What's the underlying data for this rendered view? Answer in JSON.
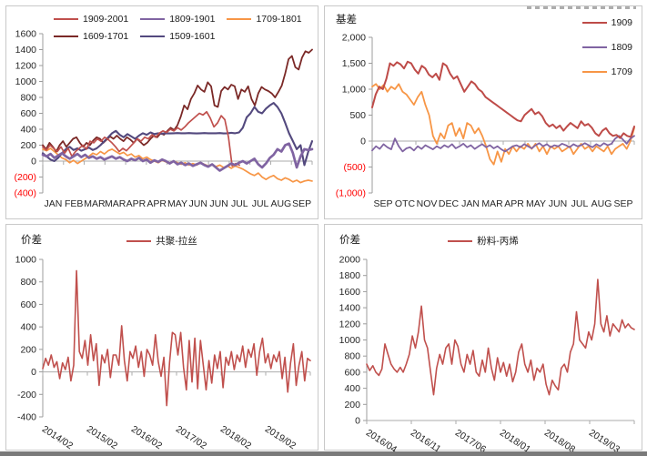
{
  "page": {
    "bottom_bar_color": "#7a7a7a"
  },
  "chart_data": [
    {
      "type": "line",
      "title": "",
      "legend_position": "top",
      "grid": "zero-line-only",
      "neg_red": true,
      "ylim": [
        -400,
        1600
      ],
      "yticks": [
        {
          "v": 1600,
          "t": "1600"
        },
        {
          "v": 1400,
          "t": "1400"
        },
        {
          "v": 1200,
          "t": "1200"
        },
        {
          "v": 1000,
          "t": "1000"
        },
        {
          "v": 800,
          "t": "800"
        },
        {
          "v": 600,
          "t": "600"
        },
        {
          "v": 400,
          "t": "400"
        },
        {
          "v": 200,
          "t": "200"
        },
        {
          "v": 0,
          "t": "0"
        },
        {
          "v": -200,
          "t": "(200)"
        },
        {
          "v": -400,
          "t": "(400)"
        }
      ],
      "xticklabels": [
        "JAN",
        "FEB",
        "MAR",
        "MAR",
        "APR",
        "APR",
        "MAY",
        "JUN",
        "JUN",
        "JUL",
        "JUL",
        "AUG",
        "SEP"
      ],
      "xtick_rotation": 0,
      "series": [
        {
          "name": "1909-2001",
          "color": "#C0504D",
          "width": 1.7,
          "z": 4,
          "x_start": 0,
          "x_end": 73,
          "values": [
            180,
            140,
            200,
            160,
            120,
            180,
            100,
            160,
            60,
            120,
            160,
            200,
            150,
            250,
            230,
            280,
            250,
            300,
            270,
            230,
            180,
            120,
            160,
            130,
            180,
            230,
            280,
            250,
            300,
            280,
            330,
            300,
            350,
            380,
            360,
            400,
            380,
            420,
            390,
            430,
            480,
            520,
            560,
            600,
            580,
            620,
            540,
            430,
            480,
            570,
            520,
            300,
            -60,
            -30,
            -50
          ]
        },
        {
          "name": "1809-1901",
          "color": "#8064A2",
          "width": 2.7,
          "z": 5,
          "values": [
            80,
            60,
            90,
            40,
            70,
            100,
            60,
            30,
            60,
            90,
            50,
            80,
            40,
            60,
            30,
            50,
            20,
            40,
            60,
            30,
            50,
            20,
            0,
            30,
            10,
            40,
            0,
            20,
            -20,
            10,
            -10,
            20,
            0,
            -30,
            0,
            -40,
            -20,
            -50,
            -30,
            -60,
            -40,
            -20,
            -50,
            -70,
            -40,
            -80,
            -120,
            -90,
            -60,
            -30,
            -50,
            -20,
            0,
            -30,
            0,
            30,
            -40,
            -80,
            -30,
            40,
            80,
            150,
            120,
            200,
            220,
            100,
            -80,
            60,
            150,
            140,
            150
          ]
        },
        {
          "name": "1709-1801",
          "color": "#F79646",
          "width": 1.7,
          "z": 1,
          "values": [
            150,
            130,
            160,
            120,
            80,
            40,
            20,
            -20,
            10,
            -30,
            0,
            30,
            60,
            100,
            80,
            120,
            90,
            130,
            150,
            120,
            90,
            110,
            70,
            90,
            50,
            70,
            30,
            50,
            20,
            0,
            -20,
            10,
            -10,
            -30,
            0,
            -20,
            -40,
            -20,
            -50,
            -30,
            -50,
            -20,
            -40,
            -60,
            -40,
            -70,
            -50,
            -80,
            -60,
            -90,
            -60,
            -80,
            -100,
            -130,
            -160,
            -180,
            -150,
            -200,
            -230,
            -200,
            -180,
            -220,
            -240,
            -210,
            -230,
            -260,
            -240,
            -270,
            -250,
            -240,
            -250
          ]
        },
        {
          "name": "1609-1701",
          "color": "#7B2927",
          "width": 1.8,
          "z": 2,
          "values": [
            200,
            150,
            230,
            180,
            120,
            200,
            250,
            180,
            230,
            280,
            300,
            230,
            180,
            230,
            200,
            260,
            300,
            280,
            230,
            270,
            310,
            280,
            320,
            280,
            250,
            300,
            270,
            230,
            280,
            240,
            200,
            230,
            280,
            320,
            300,
            350,
            330,
            380,
            420,
            390,
            450,
            560,
            700,
            650,
            780,
            850,
            950,
            900,
            870,
            990,
            940,
            700,
            680,
            880,
            930,
            900,
            960,
            940,
            780,
            900,
            870,
            940,
            780,
            700,
            850,
            930,
            900,
            880,
            850,
            800,
            870,
            950,
            1100,
            1280,
            1320,
            1180,
            1150,
            1300,
            1380,
            1360,
            1400
          ]
        },
        {
          "name": "1509-1601",
          "color": "#53497E",
          "width": 2.1,
          "z": 3,
          "values": [
            100,
            60,
            20,
            0,
            40,
            100,
            150,
            180,
            140,
            160,
            130,
            150,
            170,
            140,
            160,
            200,
            250,
            300,
            350,
            380,
            330,
            300,
            340,
            310,
            280,
            320,
            350,
            330,
            360,
            340,
            350,
            345,
            350,
            348,
            350,
            352,
            350,
            350,
            352,
            350,
            348,
            350,
            352,
            350,
            350,
            350,
            352,
            348,
            350,
            355,
            350,
            360,
            420,
            550,
            600,
            680,
            620,
            600,
            660,
            700,
            730,
            680,
            600,
            480,
            350,
            250,
            150,
            200,
            -50,
            120,
            250
          ]
        }
      ]
    },
    {
      "type": "line",
      "title": "基差",
      "legend_position": "right",
      "grid": "zero-line-only",
      "neg_red": true,
      "ylim": [
        -1000,
        2000
      ],
      "yticks": [
        {
          "v": 2000,
          "t": "2,000"
        },
        {
          "v": 1500,
          "t": "1,500"
        },
        {
          "v": 1000,
          "t": "1,000"
        },
        {
          "v": 500,
          "t": "500"
        },
        {
          "v": 0,
          "t": "0"
        },
        {
          "v": -500,
          "t": "(500)"
        },
        {
          "v": -1000,
          "t": "(1,000)"
        }
      ],
      "xticklabels": [
        "SEP",
        "OTC",
        "NOV",
        "DEC",
        "JAN",
        "MAR",
        "APR",
        "MAY",
        "JUN",
        "JUL",
        "AUG",
        "SEP"
      ],
      "xtick_rotation": 0,
      "series": [
        {
          "name": "1909",
          "color": "#BE4B48",
          "width": 2.0,
          "z": 3,
          "values": [
            650,
            900,
            1050,
            1000,
            1200,
            1500,
            1450,
            1520,
            1480,
            1400,
            1530,
            1500,
            1380,
            1300,
            1450,
            1400,
            1280,
            1230,
            1300,
            1180,
            1500,
            1450,
            1300,
            1200,
            1250,
            1100,
            950,
            1050,
            1150,
            1100,
            1000,
            950,
            850,
            800,
            750,
            700,
            650,
            600,
            550,
            500,
            450,
            400,
            380,
            500,
            560,
            620,
            520,
            560,
            480,
            350,
            280,
            320,
            250,
            300,
            200,
            280,
            350,
            300,
            250,
            380,
            300,
            330,
            260,
            150,
            100,
            200,
            250,
            150,
            100,
            120,
            60,
            150,
            100,
            80,
            280
          ]
        },
        {
          "name": "1809",
          "color": "#8064A2",
          "width": 1.8,
          "z": 2,
          "values": [
            -180,
            -100,
            -150,
            -60,
            -120,
            -160,
            50,
            -100,
            -200,
            -140,
            -120,
            -180,
            -100,
            -150,
            -80,
            -120,
            -160,
            -100,
            -140,
            -80,
            -120,
            -60,
            -140,
            -100,
            -50,
            -120,
            -80,
            -150,
            -100,
            -60,
            -120,
            -80,
            -140,
            -100,
            -160,
            -200,
            -150,
            -100,
            -80,
            -120,
            -60,
            -100,
            -140,
            -80,
            -40,
            -100,
            -60,
            -120,
            -80,
            -100,
            -50,
            -80,
            -120,
            -60,
            -100,
            -80,
            -40,
            -80,
            -120,
            -60,
            -100,
            -40,
            -80,
            -50,
            50,
            100,
            30,
            -50,
            50,
            100
          ]
        },
        {
          "name": "1709",
          "color": "#F79646",
          "width": 1.8,
          "z": 1,
          "values": [
            1050,
            1100,
            1000,
            1080,
            950,
            1050,
            1000,
            1100,
            950,
            900,
            800,
            700,
            850,
            950,
            700,
            500,
            100,
            -50,
            150,
            50,
            300,
            350,
            100,
            250,
            50,
            350,
            300,
            150,
            250,
            100,
            -100,
            -350,
            -450,
            -200,
            -400,
            -150,
            -250,
            -100,
            -200,
            -100,
            -150,
            -50,
            -150,
            -50,
            -200,
            -100,
            -250,
            -100,
            -150,
            -100,
            -200,
            -150,
            -100,
            -250,
            -150,
            -50,
            -150,
            -100,
            -200,
            -100,
            -150,
            -200,
            -100,
            -250,
            -150,
            -100,
            -50,
            -150,
            0,
            250
          ]
        }
      ]
    },
    {
      "type": "line",
      "title": "价差",
      "legend_position": "top-center",
      "grid": "zero-line-only",
      "neg_red": false,
      "ylim": [
        -400,
        1000
      ],
      "yticks": [
        {
          "v": 1000,
          "t": "1000"
        },
        {
          "v": 800,
          "t": "800"
        },
        {
          "v": 600,
          "t": "600"
        },
        {
          "v": 400,
          "t": "400"
        },
        {
          "v": 200,
          "t": "200"
        },
        {
          "v": 0,
          "t": "0"
        },
        {
          "v": -200,
          "t": "-200"
        },
        {
          "v": -400,
          "t": "-400"
        }
      ],
      "xticklabels": [
        "2014/02",
        "2015/02",
        "2016/02",
        "2017/02",
        "2018/02",
        "2019/02"
      ],
      "xtick_rotation": 33,
      "series": [
        {
          "name": "共聚-拉丝",
          "color": "#C0504D",
          "width": 1.6,
          "z": 1,
          "values": [
            30,
            120,
            60,
            150,
            40,
            90,
            -60,
            80,
            20,
            130,
            -80,
            60,
            900,
            180,
            120,
            280,
            60,
            330,
            100,
            250,
            -120,
            150,
            80,
            200,
            -50,
            150,
            150,
            60,
            410,
            100,
            -80,
            180,
            120,
            230,
            40,
            180,
            -40,
            200,
            150,
            60,
            330,
            90,
            -40,
            130,
            -300,
            80,
            350,
            330,
            150,
            350,
            40,
            -160,
            280,
            -90,
            300,
            -150,
            280,
            60,
            -160,
            100,
            -100,
            150,
            30,
            180,
            -140,
            130,
            60,
            180,
            20,
            150,
            90,
            230,
            40,
            200,
            130,
            250,
            -30,
            180,
            300,
            80,
            160,
            30,
            150,
            90,
            180,
            -60,
            130,
            -180,
            80,
            250,
            -120,
            60,
            180,
            -80,
            120,
            100
          ]
        }
      ]
    },
    {
      "type": "line",
      "title": "价差",
      "legend_position": "top-center",
      "grid": "zero-line-only",
      "neg_red": false,
      "ylim": [
        0,
        2000
      ],
      "yticks": [
        {
          "v": 2000,
          "t": "2000"
        },
        {
          "v": 1800,
          "t": "1800"
        },
        {
          "v": 1600,
          "t": "1600"
        },
        {
          "v": 1400,
          "t": "1400"
        },
        {
          "v": 1200,
          "t": "1200"
        },
        {
          "v": 1000,
          "t": "1000"
        },
        {
          "v": 800,
          "t": "800"
        },
        {
          "v": 600,
          "t": "600"
        },
        {
          "v": 400,
          "t": "400"
        },
        {
          "v": 200,
          "t": "200"
        },
        {
          "v": 0,
          "t": "0"
        }
      ],
      "xticklabels": [
        "2016/04",
        "2016/11",
        "2017/06",
        "2018/01",
        "2018/08",
        "2019/03"
      ],
      "xtick_rotation": 33,
      "series": [
        {
          "name": "粉料-丙烯",
          "color": "#C0504D",
          "width": 1.6,
          "z": 1,
          "values": [
            700,
            620,
            680,
            600,
            560,
            640,
            950,
            820,
            700,
            640,
            600,
            660,
            600,
            700,
            820,
            1050,
            900,
            1100,
            1420,
            1000,
            900,
            600,
            320,
            650,
            820,
            700,
            900,
            950,
            700,
            1000,
            920,
            700,
            600,
            820,
            700,
            870,
            600,
            550,
            750,
            600,
            900,
            650,
            500,
            780,
            600,
            720,
            550,
            700,
            480,
            600,
            850,
            950,
            700,
            600,
            750,
            500,
            650,
            600,
            700,
            450,
            320,
            500,
            430,
            380,
            650,
            700,
            600,
            850,
            950,
            1350,
            1000,
            950,
            900,
            1100,
            1000,
            1200,
            1750,
            1200,
            1100,
            1300,
            1050,
            1200,
            1150,
            1100,
            1250,
            1150,
            1200,
            1150,
            1130
          ]
        }
      ]
    }
  ]
}
